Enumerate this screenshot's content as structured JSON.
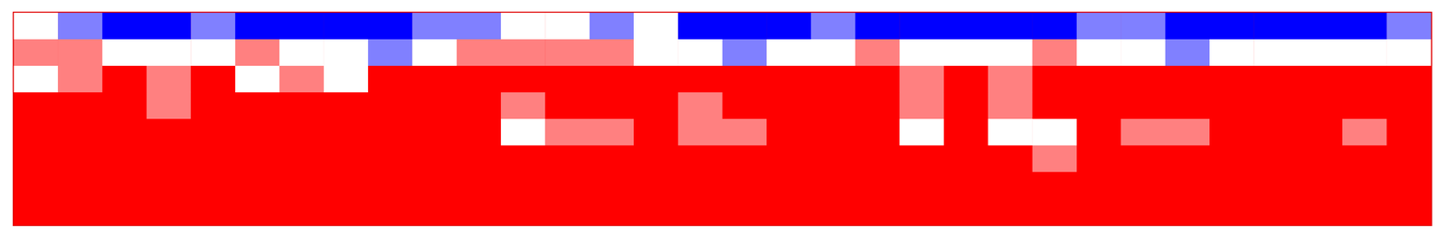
{
  "chart_data": {
    "type": "heatmap",
    "tick_labels": false,
    "grid": false,
    "zlim": [
      -1,
      1
    ],
    "cells": [
      [
        0,
        -0.5,
        -1,
        -1,
        -0.5,
        -1,
        -1,
        -1,
        -1,
        -0.5,
        -0.5,
        0,
        0,
        -0.5,
        0,
        -1,
        -1,
        -1,
        -0.5,
        -1,
        -1,
        -1,
        -1,
        -1,
        -0.5,
        -0.5,
        -1,
        -1,
        -1,
        -1,
        -1,
        -0.5
      ],
      [
        0.5,
        0.5,
        0,
        0,
        0,
        0.5,
        0,
        0,
        -0.5,
        0,
        0.5,
        0.5,
        0.5,
        0.5,
        0,
        0,
        -0.5,
        0,
        0,
        0.5,
        0,
        0,
        0,
        0.5,
        0,
        0,
        -0.5,
        0,
        0,
        0,
        0,
        0
      ],
      [
        0,
        0.5,
        1,
        0.5,
        1,
        0,
        0.5,
        0,
        1,
        1,
        1,
        1,
        1,
        1,
        1,
        1,
        1,
        1,
        1,
        1,
        0.5,
        1,
        0.5,
        1,
        1,
        1,
        1,
        1,
        1,
        1,
        1,
        1
      ],
      [
        1,
        1,
        1,
        0.5,
        1,
        1,
        1,
        1,
        1,
        1,
        1,
        0.5,
        1,
        1,
        1,
        0.5,
        1,
        1,
        1,
        1,
        0.5,
        1,
        0.5,
        1,
        1,
        1,
        1,
        1,
        1,
        1,
        1,
        1
      ],
      [
        1,
        1,
        1,
        1,
        1,
        1,
        1,
        1,
        1,
        1,
        1,
        0,
        0.5,
        0.5,
        1,
        0.5,
        0.5,
        1,
        1,
        1,
        0,
        1,
        0,
        0,
        1,
        0.5,
        0.5,
        1,
        1,
        1,
        0.5,
        1
      ],
      [
        1,
        1,
        1,
        1,
        1,
        1,
        1,
        1,
        1,
        1,
        1,
        1,
        1,
        1,
        1,
        1,
        1,
        1,
        1,
        1,
        1,
        1,
        1,
        0.5,
        1,
        1,
        1,
        1,
        1,
        1,
        1,
        1
      ],
      [
        1,
        1,
        1,
        1,
        1,
        1,
        1,
        1,
        1,
        1,
        1,
        1,
        1,
        1,
        1,
        1,
        1,
        1,
        1,
        1,
        1,
        1,
        1,
        1,
        1,
        1,
        1,
        1,
        1,
        1,
        1,
        1
      ],
      [
        1,
        1,
        1,
        1,
        1,
        1,
        1,
        1,
        1,
        1,
        1,
        1,
        1,
        1,
        1,
        1,
        1,
        1,
        1,
        1,
        1,
        1,
        1,
        1,
        1,
        1,
        1,
        1,
        1,
        1,
        1,
        1
      ]
    ]
  }
}
